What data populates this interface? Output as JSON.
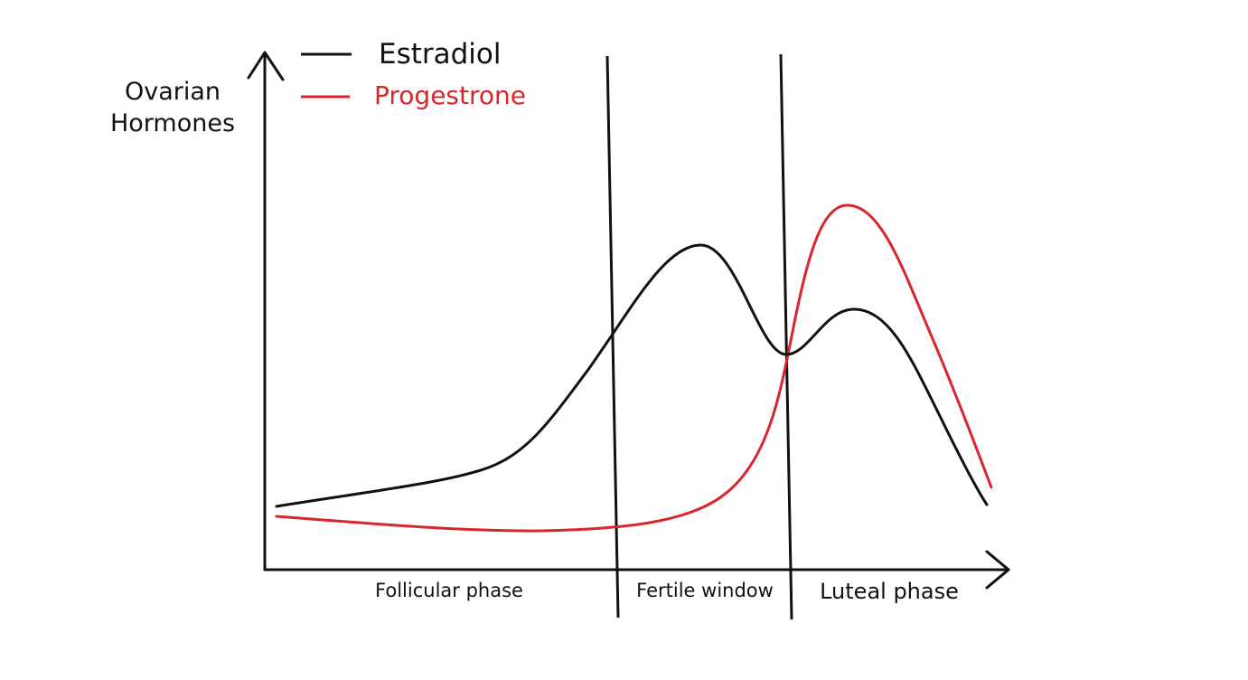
{
  "diagram": {
    "y_axis_label_line1": "Ovarian",
    "y_axis_label_line2": "Hormones",
    "legend": [
      {
        "label": "Estradiol",
        "color": "#111111"
      },
      {
        "label": "Progestrone",
        "color": "#d8262b"
      }
    ],
    "phases": [
      {
        "label": "Follicular phase"
      },
      {
        "label": "Fertile window"
      },
      {
        "label": "Luteal phase"
      }
    ],
    "axis_color": "#111111",
    "background": "#ffffff"
  }
}
